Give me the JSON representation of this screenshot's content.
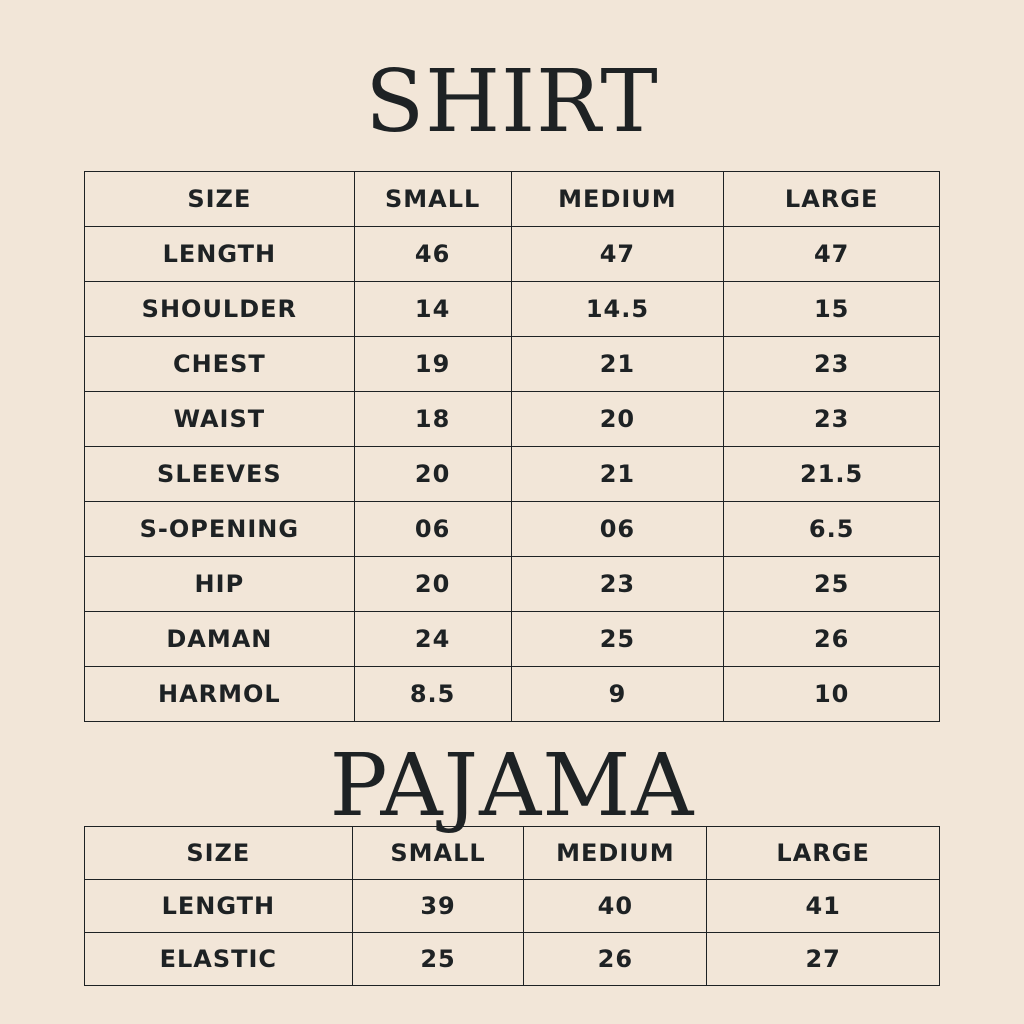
{
  "shirt": {
    "title": "SHIRT",
    "header": [
      "SIZE",
      "SMALL",
      "MEDIUM",
      "LARGE"
    ],
    "rows": [
      [
        "LENGTH",
        "46",
        "47",
        "47"
      ],
      [
        "SHOULDER",
        "14",
        "14.5",
        "15"
      ],
      [
        "CHEST",
        "19",
        "21",
        "23"
      ],
      [
        "WAIST",
        "18",
        "20",
        "23"
      ],
      [
        "SLEEVES",
        "20",
        "21",
        "21.5"
      ],
      [
        "S-OPENING",
        "06",
        "06",
        "6.5"
      ],
      [
        "HIP",
        "20",
        "23",
        "25"
      ],
      [
        "DAMAN",
        "24",
        "25",
        "26"
      ],
      [
        "HARMOL",
        "8.5",
        "9",
        "10"
      ]
    ]
  },
  "pajama": {
    "title": "PAJAMA",
    "header": [
      "SIZE",
      "SMALL",
      "MEDIUM",
      "LARGE"
    ],
    "rows": [
      [
        "LENGTH",
        "39",
        "40",
        "41"
      ],
      [
        "ELASTIC",
        "25",
        "26",
        "27"
      ]
    ]
  }
}
